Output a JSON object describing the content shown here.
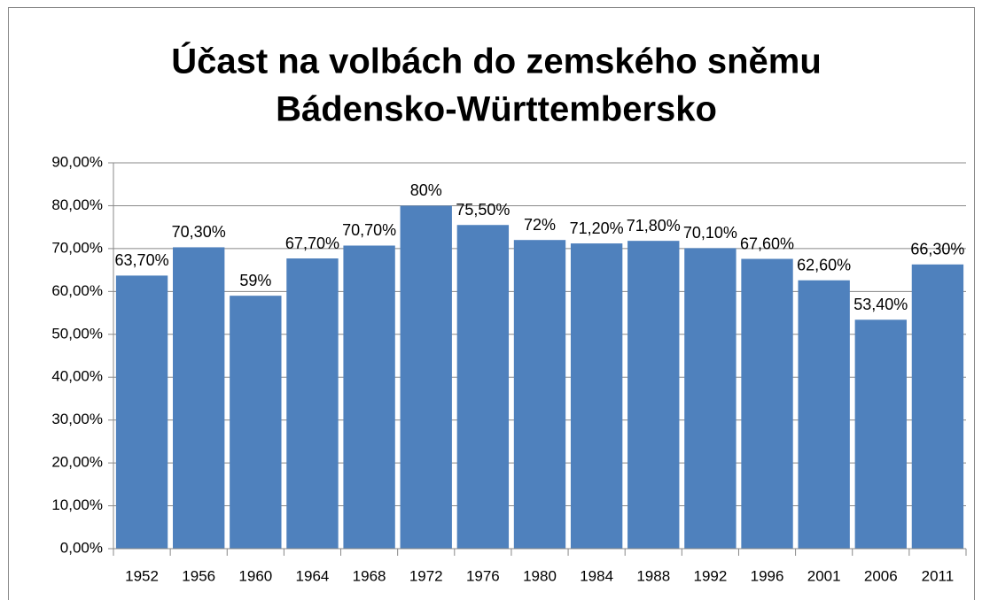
{
  "chart_data": {
    "type": "bar",
    "title": [
      "Účast na volbách do zemského sněmu",
      "Bádensko-Württembersko"
    ],
    "categories": [
      "1952",
      "1956",
      "1960",
      "1964",
      "1968",
      "1972",
      "1976",
      "1980",
      "1984",
      "1988",
      "1992",
      "1996",
      "2001",
      "2006",
      "2011"
    ],
    "values": [
      63.7,
      70.3,
      59,
      67.7,
      70.7,
      80,
      75.5,
      72,
      71.2,
      71.8,
      70.1,
      67.6,
      62.6,
      53.4,
      66.3
    ],
    "value_labels": [
      "63,70%",
      "70,30%",
      "59%",
      "67,70%",
      "70,70%",
      "80%",
      "75,50%",
      "72%",
      "71,20%",
      "71,80%",
      "70,10%",
      "67,60%",
      "62,60%",
      "53,40%",
      "66,30%"
    ],
    "color": "#4f81bd",
    "ylim": [
      0,
      90
    ],
    "yticks": [
      {
        "value": 0,
        "label": "0,00%"
      },
      {
        "value": 10,
        "label": "10,00%"
      },
      {
        "value": 20,
        "label": "20,00%"
      },
      {
        "value": 30,
        "label": "30,00%"
      },
      {
        "value": 40,
        "label": "40,00%"
      },
      {
        "value": 50,
        "label": "50,00%"
      },
      {
        "value": 60,
        "label": "60,00%"
      },
      {
        "value": 70,
        "label": "70,00%"
      },
      {
        "value": 80,
        "label": "80,00%"
      },
      {
        "value": 90,
        "label": "90,00%"
      }
    ],
    "grid": true
  }
}
